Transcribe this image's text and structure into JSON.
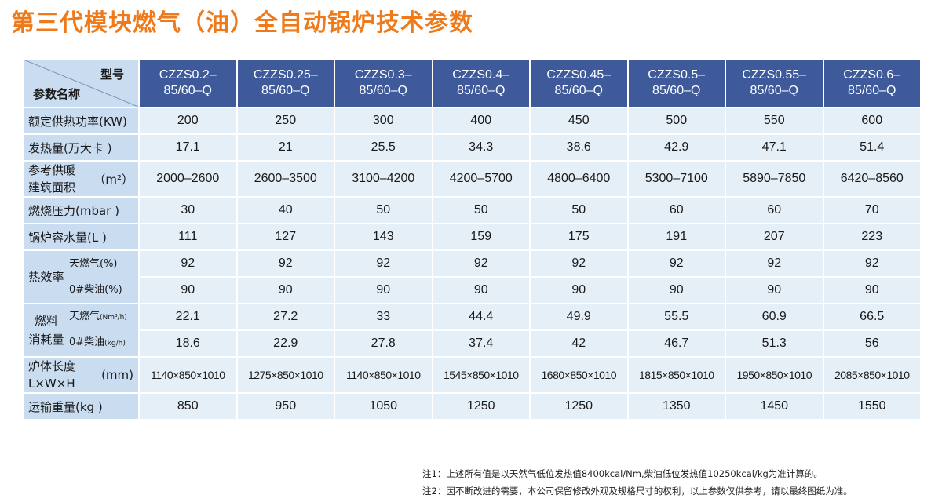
{
  "title": "第三代模块燃气（油）全自动锅炉技术参数",
  "table": {
    "corner_top": "型号",
    "corner_bottom": "参数名称",
    "models": [
      [
        "CZZS0.2–",
        "85/60–Q"
      ],
      [
        "CZZS0.25–",
        "85/60–Q"
      ],
      [
        "CZZS0.3–",
        "85/60–Q"
      ],
      [
        "CZZS0.4–",
        "85/60–Q"
      ],
      [
        "CZZS0.45–",
        "85/60–Q"
      ],
      [
        "CZZS0.5–",
        "85/60–Q"
      ],
      [
        "CZZS0.55–",
        "85/60–Q"
      ],
      [
        "CZZS0.6–",
        "85/60–Q"
      ]
    ],
    "rows": {
      "rated_power": {
        "label": "额定供热功率(KW)",
        "values": [
          "200",
          "250",
          "300",
          "400",
          "450",
          "500",
          "550",
          "600"
        ]
      },
      "heat_output": {
        "label": "发热量(万大卡 )",
        "values": [
          "17.1",
          "21",
          "25.5",
          "34.3",
          "38.6",
          "42.9",
          "47.1",
          "51.4"
        ]
      },
      "heating_area": {
        "label_line1": "参考供暖",
        "label_line2": "建筑面积",
        "label_unit": "（m²）",
        "values": [
          "2000–2600",
          "2600–3500",
          "3100–4200",
          "4200–5700",
          "4800–6400",
          "5300–7100",
          "5890–7850",
          "6420–8560"
        ]
      },
      "burn_pressure": {
        "label": "燃烧压力(mbar )",
        "values": [
          "30",
          "40",
          "50",
          "50",
          "50",
          "60",
          "60",
          "70"
        ]
      },
      "water_volume": {
        "label": "锅炉容水量(L )",
        "values": [
          "111",
          "127",
          "143",
          "159",
          "175",
          "191",
          "207",
          "223"
        ]
      },
      "efficiency": {
        "group": "热效率",
        "gas": {
          "label": "天燃气(%)",
          "values": [
            "92",
            "92",
            "92",
            "92",
            "92",
            "92",
            "92",
            "92"
          ]
        },
        "oil": {
          "label": "0#柴油(%)",
          "values": [
            "90",
            "90",
            "90",
            "90",
            "90",
            "90",
            "90",
            "90"
          ]
        }
      },
      "fuel": {
        "group_line1": "燃料",
        "group_line2": "消耗量",
        "gas": {
          "label": "天燃气",
          "unit": "(Nm³/h)",
          "values": [
            "22.1",
            "27.2",
            "33",
            "44.4",
            "49.9",
            "55.5",
            "60.9",
            "66.5"
          ]
        },
        "oil": {
          "label": "0#柴油",
          "unit": "(kg/h)",
          "values": [
            "18.6",
            "22.9",
            "27.8",
            "37.4",
            "42",
            "46.7",
            "51.3",
            "56"
          ]
        }
      },
      "dimensions": {
        "label_line1": "炉体长度",
        "label_line2": "L×W×H",
        "label_unit": "(mm)",
        "values": [
          "1140×850×1010",
          "1275×850×1010",
          "1140×850×1010",
          "1545×850×1010",
          "1680×850×1010",
          "1815×850×1010",
          "1950×850×1010",
          "2085×850×1010"
        ]
      },
      "weight": {
        "label": "运输重量(kg )",
        "values": [
          "850",
          "950",
          "1050",
          "1250",
          "1250",
          "1350",
          "1450",
          "1550"
        ]
      }
    }
  },
  "notes": [
    "注1：上述所有值是以天然气低位发热值8400kcal/Nm,柴油低位发热值10250kcal/kg为准计算的。",
    "注2：因不断改进的需要，本公司保留修改外观及规格尺寸的权利，以上参数仅供参考，请以最终图纸为准。"
  ],
  "colors": {
    "title": "#ee7a1b",
    "header_bg": "#3e5a9b",
    "label_bg": "#c9dcf0",
    "cell_bg": "#e5eff7"
  }
}
